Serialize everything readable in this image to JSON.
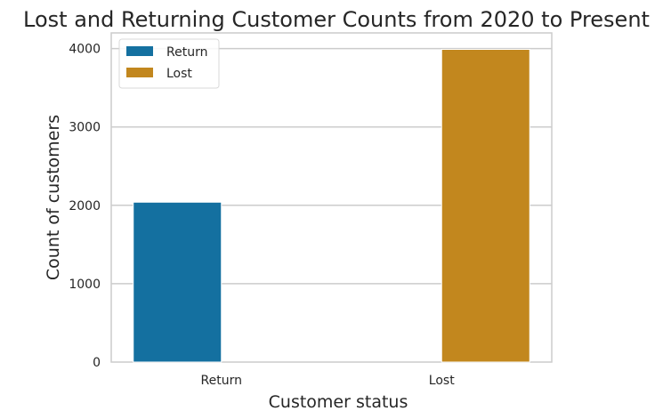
{
  "chart_data": {
    "type": "bar",
    "title": "Lost and Returning Customer Counts from 2020 to Present",
    "xlabel": "Customer status",
    "ylabel": "Count of customers",
    "categories": [
      "Return",
      "Lost"
    ],
    "series": [
      {
        "name": "Return",
        "values": [
          2040,
          null
        ],
        "color": "#1470a0"
      },
      {
        "name": "Lost",
        "values": [
          null,
          3990
        ],
        "color": "#c2871e"
      }
    ],
    "ylim": [
      0,
      4200
    ],
    "yticks": [
      0,
      1000,
      2000,
      3000,
      4000
    ],
    "grid": true,
    "legend_position": "top-left"
  }
}
